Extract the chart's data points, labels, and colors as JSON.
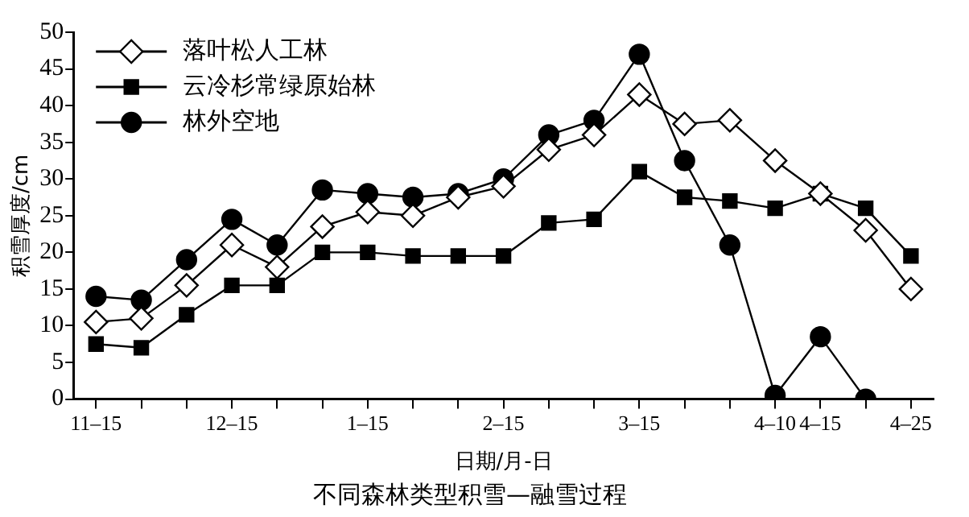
{
  "chart_data": {
    "type": "line",
    "title": "不同森林类型积雪—融雪过程",
    "xlabel": "日期/月-日",
    "ylabel": "积雪厚度/cm",
    "categories": [
      "11–15",
      null,
      null,
      "12–15",
      null,
      null,
      "1–15",
      null,
      null,
      "2–15",
      null,
      null,
      "3–15",
      null,
      null,
      "4–10",
      "4–15",
      null,
      "4–25"
    ],
    "series": [
      {
        "name": "落叶松人工林",
        "color": "#000000",
        "marker": "diamond",
        "values": [
          10.5,
          11,
          15.5,
          21,
          18,
          23.5,
          25.5,
          25,
          27.5,
          29,
          34,
          36,
          41.5,
          37.5,
          38,
          32.5,
          28,
          23,
          15
        ]
      },
      {
        "name": "云冷杉常绿原始林",
        "color": "#000000",
        "marker": "square",
        "values": [
          7.5,
          7,
          11.5,
          15.5,
          15.5,
          20,
          20,
          19.5,
          19.5,
          19.5,
          24,
          24.5,
          31,
          27.5,
          27,
          26,
          28,
          26,
          19.5
        ]
      },
      {
        "name": "林外空地",
        "color": "#000000",
        "marker": "circle",
        "values": [
          14,
          13.5,
          19,
          24.5,
          21,
          28.5,
          28,
          27.5,
          28,
          30,
          36,
          38,
          47,
          32.5,
          21,
          0.5,
          8.5,
          0,
          null
        ]
      }
    ],
    "ylim": [
      0,
      50
    ],
    "yticks": [
      0,
      5,
      10,
      15,
      20,
      25,
      30,
      35,
      40,
      45,
      50
    ],
    "grid": false,
    "legend": "top left",
    "line_style": "solid"
  }
}
